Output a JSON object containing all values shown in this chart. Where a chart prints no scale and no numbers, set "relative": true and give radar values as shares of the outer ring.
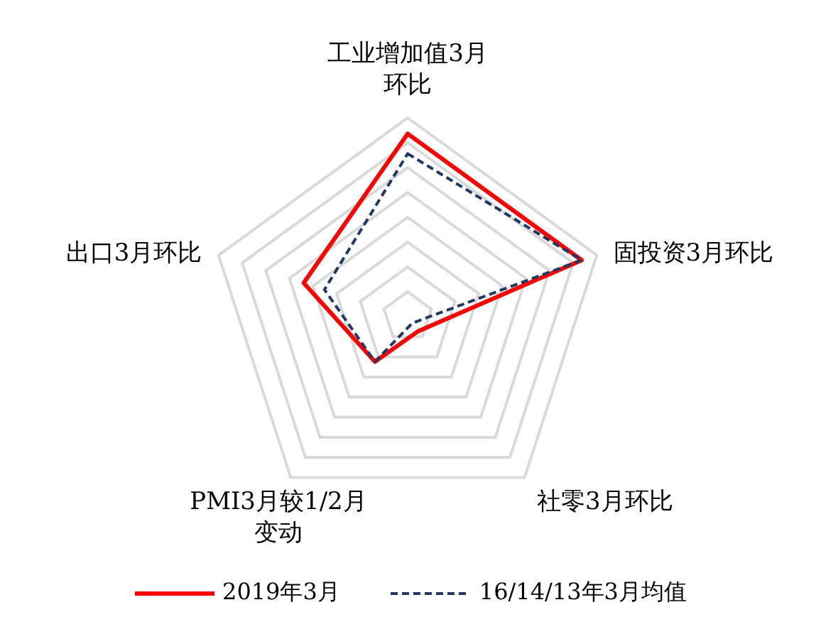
{
  "chart_data": {
    "type": "radar",
    "relative": true,
    "categories": [
      "工业增加值3月环比",
      "固投资3月环比",
      "社零3月环比",
      "PMI3月较1/2月变动",
      "出口3月环比"
    ],
    "series": [
      {
        "name": "2019年3月",
        "color": "#ff0000",
        "line_style": "solid",
        "values": [
          0.92,
          0.92,
          0.09,
          0.28,
          0.55
        ]
      },
      {
        "name": "16/14/13年3月均值",
        "color": "#1f3864",
        "line_style": "dashed",
        "values": [
          0.82,
          0.92,
          0.04,
          0.28,
          0.44
        ]
      }
    ],
    "grid": true,
    "legend": "bottom",
    "marker": "none"
  }
}
